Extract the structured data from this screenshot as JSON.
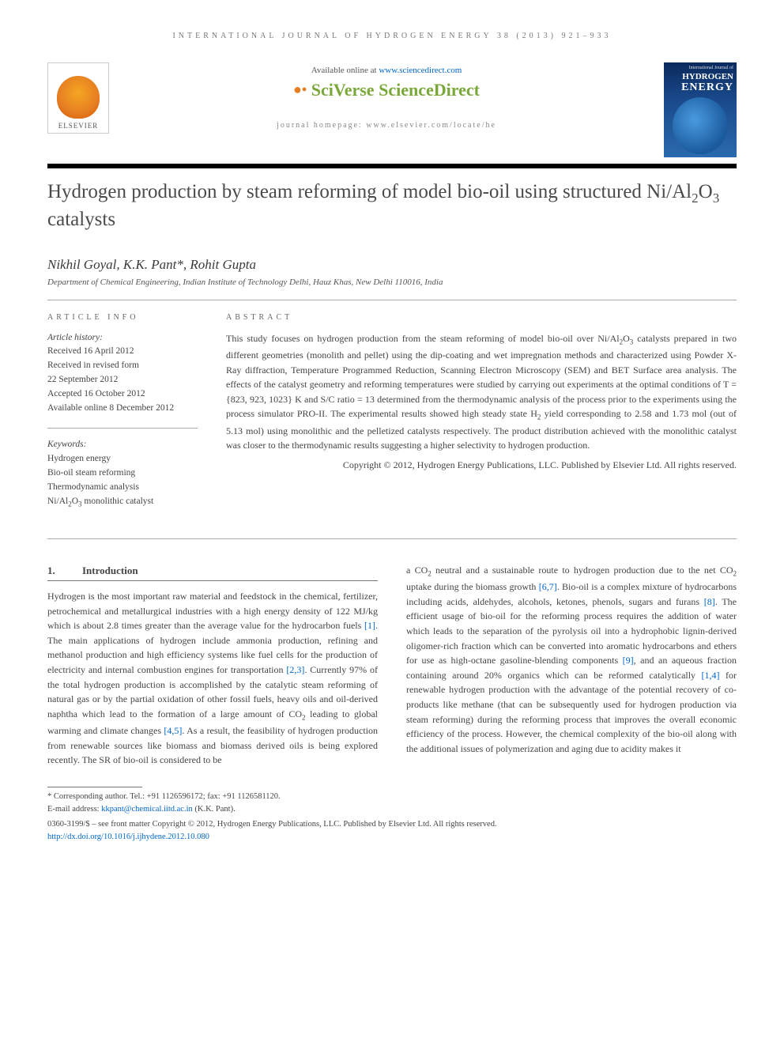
{
  "running_head": "INTERNATIONAL JOURNAL OF HYDROGEN ENERGY 38 (2013) 921–933",
  "available_text": "Available online at ",
  "available_url": "www.sciencedirect.com",
  "sciverse": "SciVerse ",
  "sciencedirect": "ScienceDirect",
  "journal_homepage": "journal homepage: www.elsevier.com/locate/he",
  "elsevier_word": "ELSEVIER",
  "cover": {
    "top": "International Journal of",
    "mid": "HYDROGEN",
    "energy": "ENERGY"
  },
  "title_html": "Hydrogen production by steam reforming of model bio-oil using structured Ni/Al<sub>2</sub>O<sub>3</sub> catalysts",
  "authors": "Nikhil Goyal, K.K. Pant*, Rohit Gupta",
  "affiliation": "Department of Chemical Engineering, Indian Institute of Technology Delhi, Hauz Khas, New Delhi 110016, India",
  "info_head": "ARTICLE INFO",
  "abs_head": "ABSTRACT",
  "history_label": "Article history:",
  "history": [
    "Received 16 April 2012",
    "Received in revised form",
    "22 September 2012",
    "Accepted 16 October 2012",
    "Available online 8 December 2012"
  ],
  "keywords_label": "Keywords:",
  "keywords": [
    "Hydrogen energy",
    "Bio-oil steam reforming",
    "Thermodynamic analysis",
    "Ni/Al<sub>2</sub>O<sub>3</sub> monolithic catalyst"
  ],
  "abstract_html": "This study focuses on hydrogen production from the steam reforming of model bio-oil over Ni/Al<sub>2</sub>O<sub>3</sub> catalysts prepared in two different geometries (monolith and pellet) using the dip-coating and wet impregnation methods and characterized using Powder X-Ray diffraction, Temperature Programmed Reduction, Scanning Electron Microscopy (SEM) and BET Surface area analysis. The effects of the catalyst geometry and reforming temperatures were studied by carrying out experiments at the optimal conditions of T = {823, 923, 1023} K and S/C ratio = 13 determined from the thermodynamic analysis of the process prior to the experiments using the process simulator PRO-II. The experimental results showed high steady state H<sub>2</sub> yield corresponding to 2.58 and 1.73 mol (out of 5.13 mol) using monolithic and the pelletized catalysts respectively. The product distribution achieved with the monolithic catalyst was closer to the thermodynamic results suggesting a higher selectivity to hydrogen production.",
  "copyright": "Copyright © 2012, Hydrogen Energy Publications, LLC. Published by Elsevier Ltd. All rights reserved.",
  "intro_num": "1.",
  "intro_title": "Introduction",
  "intro_col1_html": "Hydrogen is the most important raw material and feedstock in the chemical, fertilizer, petrochemical and metallurgical industries with a high energy density of 122 MJ/kg which is about 2.8 times greater than the average value for the hydrocarbon fuels <span class=\"ref\">[1]</span>. The main applications of hydrogen include ammonia production, refining and methanol production and high efficiency systems like fuel cells for the production of electricity and internal combustion engines for transportation <span class=\"ref\">[2,3]</span>. Currently 97% of the total hydrogen production is accomplished by the catalytic steam reforming of natural gas or by the partial oxidation of other fossil fuels, heavy oils and oil-derived naphtha which lead to the formation of a large amount of CO<sub>2</sub> leading to global warming and climate changes <span class=\"ref\">[4,5]</span>. As a result, the feasibility of hydrogen production from renewable sources like biomass and biomass derived oils is being explored recently. The SR of bio-oil is considered to be",
  "intro_col2_html": "a CO<sub>2</sub> neutral and a sustainable route to hydrogen production due to the net CO<sub>2</sub> uptake during the biomass growth <span class=\"ref\">[6,7]</span>. Bio-oil is a complex mixture of hydrocarbons including acids, aldehydes, alcohols, ketones, phenols, sugars and furans <span class=\"ref\">[8]</span>. The efficient usage of bio-oil for the reforming process requires the addition of water which leads to the separation of the pyrolysis oil into a hydrophobic lignin-derived oligomer-rich fraction which can be converted into aromatic hydrocarbons and ethers for use as high-octane gasoline-blending components <span class=\"ref\">[9]</span>, and an aqueous fraction containing around 20% organics which can be reformed catalytically <span class=\"ref\">[1,4]</span> for renewable hydrogen production with the advantage of the potential recovery of co-products like methane (that can be subsequently used for hydrogen production via steam reforming) during the reforming process that improves the overall economic efficiency of the process. However, the chemical complexity of the bio-oil along with the additional issues of polymerization and aging due to acidity makes it",
  "footnote_corr": "* Corresponding author. Tel.: +91 1126596172; fax: +91 1126581120.",
  "footnote_email_label": "E-mail address: ",
  "footnote_email": "kkpant@chemical.iitd.ac.in",
  "footnote_email_tail": " (K.K. Pant).",
  "front_matter": "0360-3199/$ – see front matter Copyright © 2012, Hydrogen Energy Publications, LLC. Published by Elsevier Ltd. All rights reserved.",
  "doi_url": "http://dx.doi.org/10.1016/j.ijhydene.2012.10.080",
  "colors": {
    "link": "#0066cc",
    "sciverse_green": "#7aa838",
    "sciverse_orange": "#e67e22"
  }
}
